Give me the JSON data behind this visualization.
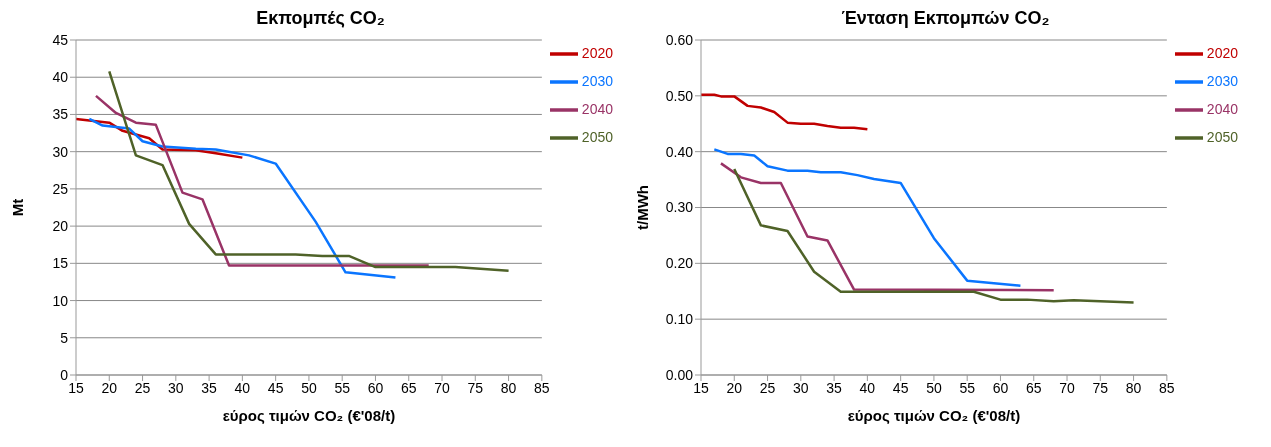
{
  "chart_data": [
    {
      "type": "line",
      "title": "Εκπομπές CO₂",
      "xlabel": "εύρος τιμών CO₂ (€'08/t)",
      "ylabel": "Mt",
      "xlim": [
        15,
        85
      ],
      "xticks": [
        15,
        20,
        25,
        30,
        35,
        40,
        45,
        50,
        55,
        60,
        65,
        70,
        75,
        80,
        85
      ],
      "ylim": [
        0,
        45
      ],
      "yticks": [
        0,
        5,
        10,
        15,
        20,
        25,
        30,
        35,
        40,
        45
      ],
      "grid": "y",
      "legend": "right",
      "series": [
        {
          "name": "2020",
          "color": "#c00000",
          "x": [
            15,
            17,
            20,
            22,
            26,
            28,
            33,
            36,
            40
          ],
          "values": [
            34.4,
            34.2,
            33.9,
            32.8,
            31.8,
            30.3,
            30.2,
            29.8,
            29.2
          ]
        },
        {
          "name": "2030",
          "color": "#0a75ff",
          "x": [
            17,
            19,
            23,
            25,
            28,
            33,
            36,
            41,
            45,
            51,
            55.5,
            63
          ],
          "values": [
            34.4,
            33.5,
            33.1,
            31.4,
            30.7,
            30.4,
            30.3,
            29.5,
            28.4,
            20.6,
            13.8,
            13.1
          ]
        },
        {
          "name": "2040",
          "color": "#993366",
          "x": [
            18,
            21,
            24,
            27,
            31,
            34,
            38,
            68
          ],
          "values": [
            37.5,
            35.2,
            33.9,
            33.6,
            24.5,
            23.6,
            14.7,
            14.7
          ]
        },
        {
          "name": "2050",
          "color": "#4f6228",
          "x": [
            20,
            24,
            28,
            32,
            36,
            48,
            52,
            56,
            60,
            64,
            72,
            80
          ],
          "values": [
            40.8,
            29.5,
            28.2,
            20.3,
            16.2,
            16.2,
            16.0,
            16.0,
            14.5,
            14.5,
            14.5,
            14.0
          ]
        }
      ]
    },
    {
      "type": "line",
      "title": "Ένταση Εκπομπών CO₂",
      "xlabel": "εύρος τιμών CO₂ (€'08/t)",
      "ylabel": "t/MWh",
      "xlim": [
        15,
        85
      ],
      "xticks": [
        15,
        20,
        25,
        30,
        35,
        40,
        45,
        50,
        55,
        60,
        65,
        70,
        75,
        80,
        85
      ],
      "ylim": [
        0,
        0.6
      ],
      "yticks": [
        {
          "value": 0,
          "label": "0.00"
        },
        {
          "value": 0.1,
          "label": "0.10"
        },
        {
          "value": 0.2,
          "label": "0.20"
        },
        {
          "value": 0.3,
          "label": "0.30"
        },
        {
          "value": 0.4,
          "label": "0.40"
        },
        {
          "value": 0.5,
          "label": "0.50"
        },
        {
          "value": 0.6,
          "label": "0.60"
        }
      ],
      "grid": "y",
      "legend": "right",
      "series": [
        {
          "name": "2020",
          "color": "#c00000",
          "x": [
            15,
            17,
            18,
            20,
            22,
            24,
            26,
            28,
            30,
            32,
            34,
            36,
            38,
            40
          ],
          "values": [
            0.502,
            0.502,
            0.499,
            0.499,
            0.482,
            0.479,
            0.471,
            0.452,
            0.45,
            0.45,
            0.446,
            0.443,
            0.443,
            0.44
          ]
        },
        {
          "name": "2030",
          "color": "#0a75ff",
          "x": [
            17,
            19,
            21,
            23,
            25,
            28,
            31,
            33,
            36,
            38.5,
            41,
            45,
            50,
            55,
            63
          ],
          "values": [
            0.404,
            0.396,
            0.396,
            0.393,
            0.374,
            0.366,
            0.366,
            0.363,
            0.363,
            0.358,
            0.351,
            0.344,
            0.245,
            0.169,
            0.16
          ]
        },
        {
          "name": "2040",
          "color": "#993366",
          "x": [
            18,
            21,
            24,
            27,
            31,
            34,
            38,
            68
          ],
          "values": [
            0.379,
            0.354,
            0.344,
            0.344,
            0.248,
            0.241,
            0.153,
            0.152
          ]
        },
        {
          "name": "2050",
          "color": "#4f6228",
          "x": [
            20,
            24,
            28,
            32,
            36,
            56,
            60,
            64,
            68,
            71,
            80
          ],
          "values": [
            0.369,
            0.268,
            0.258,
            0.185,
            0.149,
            0.149,
            0.135,
            0.135,
            0.132,
            0.134,
            0.13
          ]
        }
      ]
    }
  ]
}
